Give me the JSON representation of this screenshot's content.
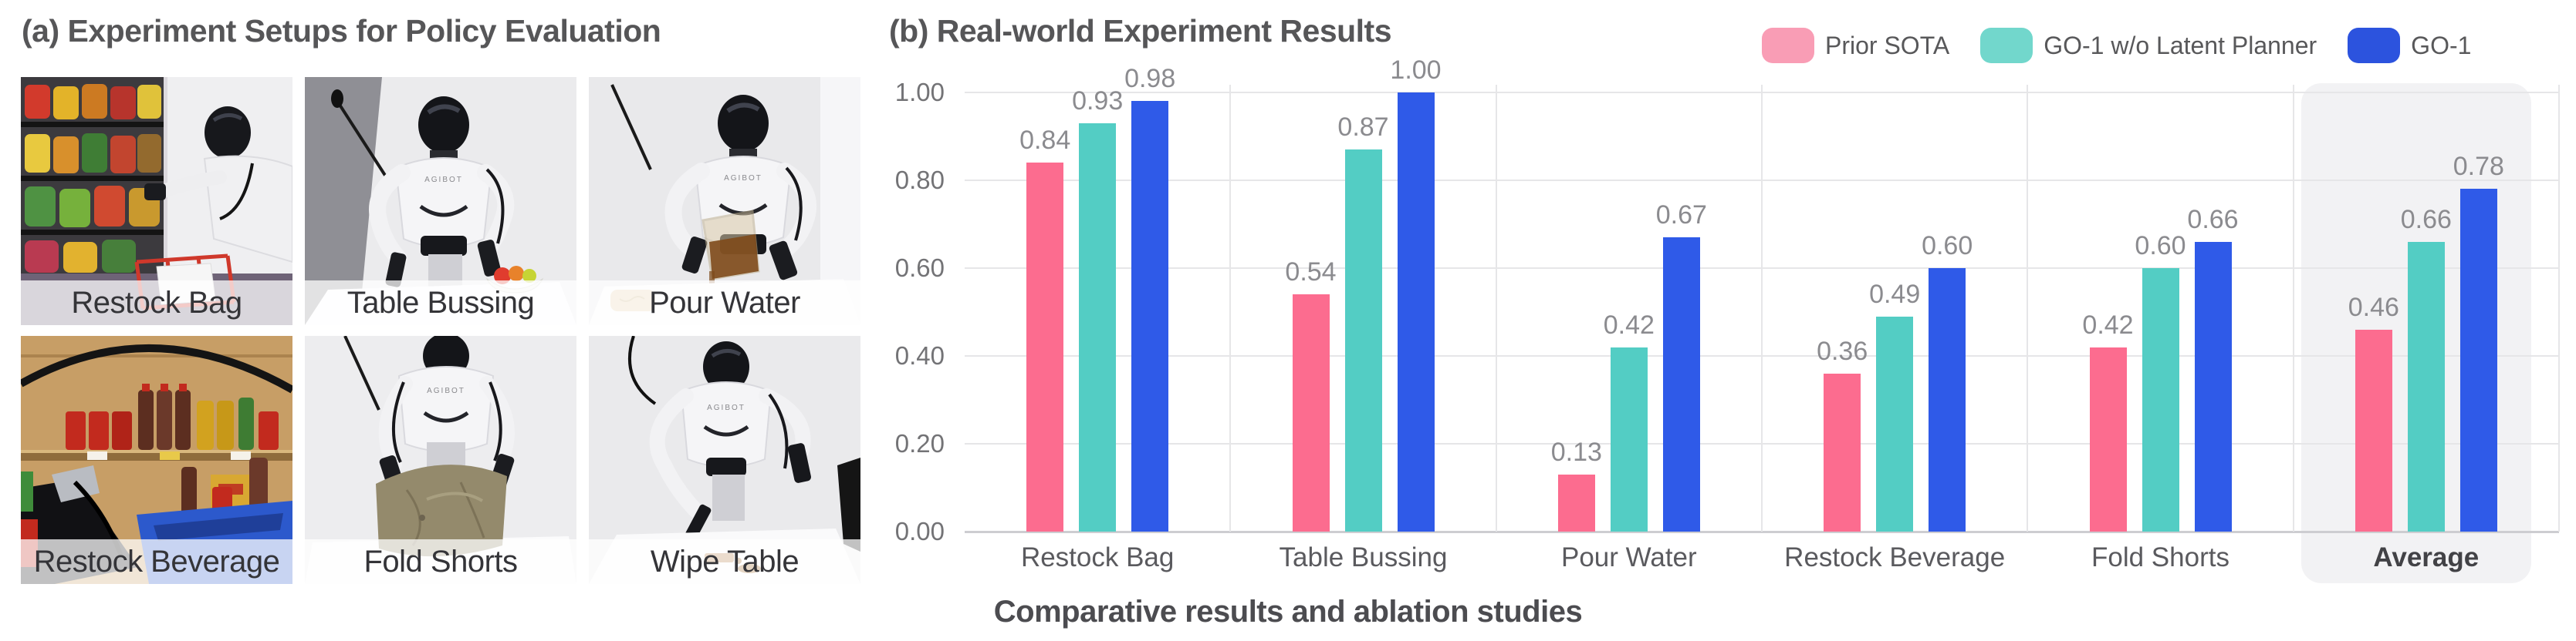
{
  "panel_a": {
    "title": "(a) Experiment Setups for Policy Evaluation",
    "robot_brand": "AGIBOT",
    "tiles": [
      {
        "label": "Restock Bag"
      },
      {
        "label": "Table Bussing"
      },
      {
        "label": "Pour Water"
      },
      {
        "label": "Restock Beverage"
      },
      {
        "label": "Fold Shorts"
      },
      {
        "label": "Wipe Table"
      }
    ]
  },
  "panel_b": {
    "title": "(b) Real-world Experiment Results",
    "caption": "Comparative results and ablation studies",
    "legend": [
      {
        "label": "Prior SOTA",
        "color": "#F99DB5"
      },
      {
        "label": "GO-1 w/o Latent Planner",
        "color": "#72D7CC"
      },
      {
        "label": "GO-1",
        "color": "#2C53DE"
      }
    ]
  },
  "chart_data": {
    "type": "bar",
    "title": "(b) Real-world Experiment Results",
    "categories": [
      "Restock Bag",
      "Table Bussing",
      "Pour Water",
      "Restock Beverage",
      "Fold Shorts",
      "Average"
    ],
    "series": [
      {
        "name": "Prior SOTA",
        "color": "#FC6C8F",
        "values": [
          0.84,
          0.54,
          0.13,
          0.36,
          0.42,
          0.46
        ]
      },
      {
        "name": "GO-1 w/o Latent Planner",
        "color": "#53CDC4",
        "values": [
          0.93,
          0.87,
          0.42,
          0.49,
          0.6,
          0.66
        ]
      },
      {
        "name": "GO-1",
        "color": "#2F5AE8",
        "values": [
          0.98,
          1.0,
          0.67,
          0.6,
          0.66,
          0.78
        ]
      }
    ],
    "ylabel": "",
    "xlabel": "",
    "ylim": [
      0,
      1.0
    ],
    "yticks": [
      "0.00",
      "0.20",
      "0.40",
      "0.60",
      "0.80",
      "1.00"
    ],
    "grid": true,
    "legend_position": "top-right",
    "highlight_category": "Average",
    "highlight_color": "#F2F2F4",
    "gridline_color": "#E6E6E8",
    "baseline_color": "#CDCDD1",
    "label_color": "#8B8B8F"
  }
}
